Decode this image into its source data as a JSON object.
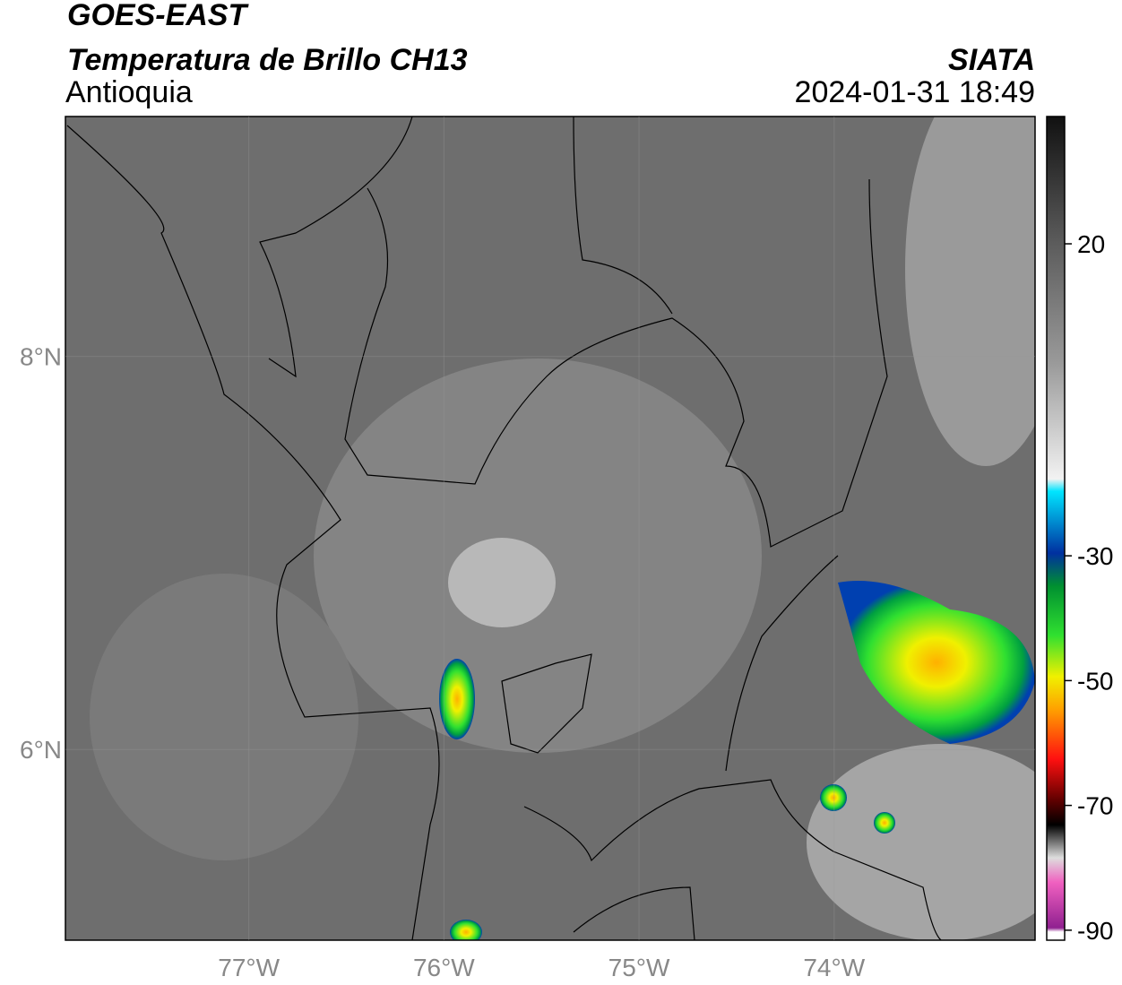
{
  "header": {
    "title": "GOES-EAST",
    "subtitle": "Temperatura de Brillo CH13",
    "region": "Antioquia",
    "source": "SIATA",
    "datetime": "2024-01-31 18:49"
  },
  "map": {
    "xlim": [
      -77.94,
      -72.97
    ],
    "ylim": [
      5.03,
      9.22
    ],
    "xticks": [
      {
        "value": -77,
        "label": "77°W"
      },
      {
        "value": -76,
        "label": "76°W"
      },
      {
        "value": -75,
        "label": "75°W"
      },
      {
        "value": -74,
        "label": "74°W"
      }
    ],
    "yticks": [
      {
        "value": 6,
        "label": "6°N"
      },
      {
        "value": 8,
        "label": "8°N"
      }
    ],
    "grid": true
  },
  "colorbar": {
    "clim": [
      -91.6,
      40.4
    ],
    "ticks": [
      20,
      -30,
      -50,
      -70,
      -90
    ]
  }
}
